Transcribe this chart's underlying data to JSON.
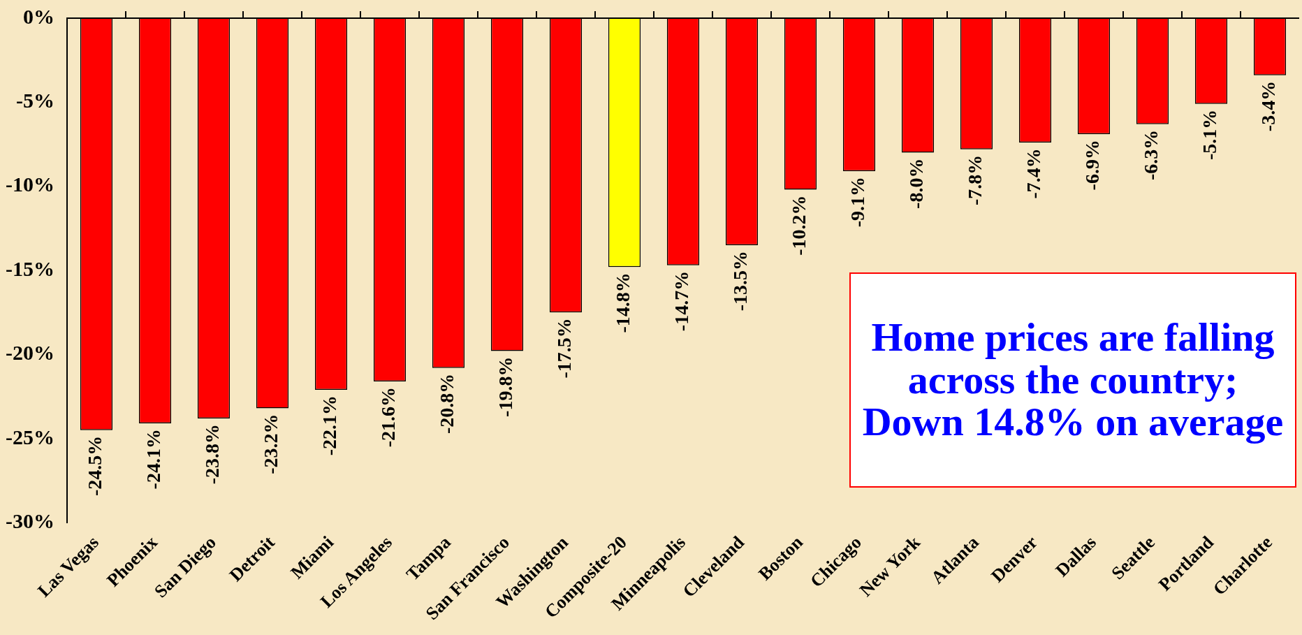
{
  "chart_data": {
    "type": "bar",
    "categories": [
      "Las Vegas",
      "Phoenix",
      "San Diego",
      "Detroit",
      "Miami",
      "Los Angeles",
      "Tampa",
      "San Francisco",
      "Washington",
      "Composite-20",
      "Minneapolis",
      "Cleveland",
      "Boston",
      "Chicago",
      "New York",
      "Atlanta",
      "Denver",
      "Dallas",
      "Seattle",
      "Portland",
      "Charlotte"
    ],
    "values": [
      -24.5,
      -24.1,
      -23.8,
      -23.2,
      -22.1,
      -21.6,
      -20.8,
      -19.8,
      -17.5,
      -14.8,
      -14.7,
      -13.5,
      -10.2,
      -9.1,
      -8.0,
      -7.8,
      -7.4,
      -6.9,
      -6.3,
      -5.1,
      -3.4
    ],
    "value_labels": [
      "-24.5%",
      "-24.1%",
      "-23.8%",
      "-23.2%",
      "-22.1%",
      "-21.6%",
      "-20.8%",
      "-19.8%",
      "-17.5%",
      "-14.8%",
      "-14.7%",
      "-13.5%",
      "-10.2%",
      "-9.1%",
      "-8.0%",
      "-7.8%",
      "-7.4%",
      "-6.9%",
      "-6.3%",
      "-5.1%",
      "-3.4%"
    ],
    "colors": [
      "#ff0000",
      "#ff0000",
      "#ff0000",
      "#ff0000",
      "#ff0000",
      "#ff0000",
      "#ff0000",
      "#ff0000",
      "#ff0000",
      "#ffff00",
      "#ff0000",
      "#ff0000",
      "#ff0000",
      "#ff0000",
      "#ff0000",
      "#ff0000",
      "#ff0000",
      "#ff0000",
      "#ff0000",
      "#ff0000",
      "#ff0000"
    ],
    "ylim": [
      -30,
      0
    ],
    "yticks": [
      {
        "value": 0,
        "label": "0%"
      },
      {
        "value": -5,
        "label": "-5%"
      },
      {
        "value": -10,
        "label": "-10%"
      },
      {
        "value": -15,
        "label": "-15%"
      },
      {
        "value": -20,
        "label": "-20%"
      },
      {
        "value": -25,
        "label": "-25%"
      },
      {
        "value": -30,
        "label": "-30%"
      }
    ],
    "grid": false,
    "legend": false,
    "annotations": [
      "Home prices are falling across the country; Down 14.8% on average"
    ]
  }
}
